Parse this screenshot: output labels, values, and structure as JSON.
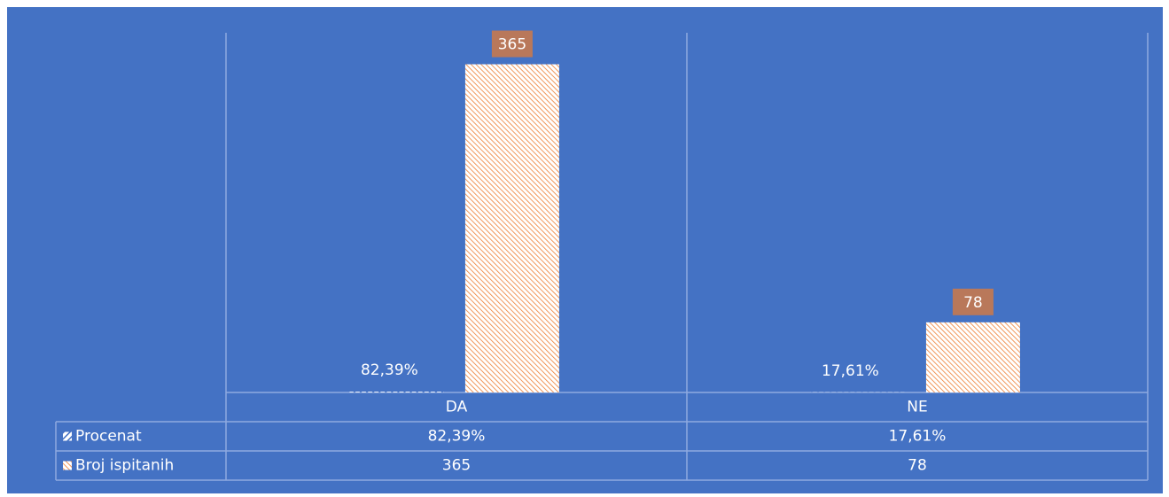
{
  "chart_data": {
    "type": "bar",
    "categories": [
      "DA",
      "NE"
    ],
    "series": [
      {
        "name": "Procenat",
        "color": "#4472c4",
        "values": [
          0.8239,
          0.1761
        ],
        "value_labels": [
          "82,39%",
          "17,61%"
        ]
      },
      {
        "name": "Broj ispitanih",
        "color": "#ed7d31",
        "values": [
          365,
          78
        ]
      }
    ],
    "ylim": [
      0,
      400
    ]
  }
}
